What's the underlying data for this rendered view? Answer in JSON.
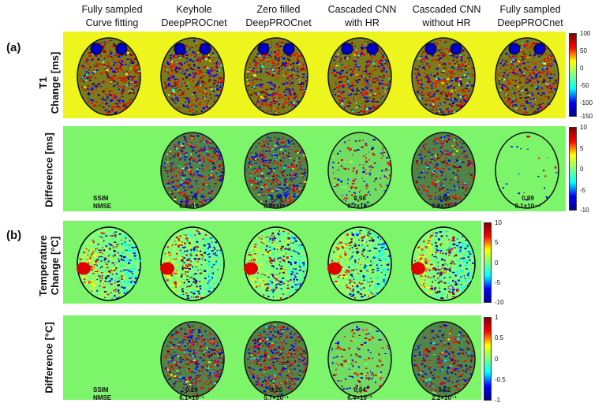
{
  "columns": [
    [
      "Fully sampled",
      "Curve fitting"
    ],
    [
      "Keyhole",
      "DeepPROCnet"
    ],
    [
      "Zero filled",
      "DeepPROCnet"
    ],
    [
      "Cascaded CNN",
      "with HR"
    ],
    [
      "Cascaded CNN",
      "without HR"
    ],
    [
      "Fully sampled",
      "DeepPROCnet"
    ]
  ],
  "panel_a_label": "(a)",
  "panel_b_label": "(b)",
  "row_labels": {
    "t1_change": [
      "T1",
      "Change  [ms]"
    ],
    "t1_diff": [
      "Difference [ms]"
    ],
    "temp_change": [
      "Temperature",
      "Change [°C]"
    ],
    "temp_diff": [
      "Difference [°C]"
    ]
  },
  "metric_labels": {
    "ssim": "SSIM",
    "nmse": "NMSE"
  },
  "metrics_a": {
    "ssim": [
      "0.79",
      "0.79",
      "0.98",
      "0.96",
      "0.99"
    ],
    "nmse": [
      "0.8×10⁻²",
      "0.8×10⁻²",
      "0.2×10⁻³",
      "0.8×10⁻³",
      "0.1×10⁻⁴"
    ]
  },
  "metrics_b": {
    "ssim": [
      "0.20",
      "0.26",
      "0.84",
      "0.52"
    ],
    "nmse": [
      "6.1×10⁻¹",
      "5.7×10⁻¹",
      "6.4×10⁻²",
      "2.2×10⁻¹"
    ]
  },
  "colorbars": {
    "t1_change": [
      "100",
      "50",
      "0",
      "-50",
      "-100",
      "-150"
    ],
    "t1_diff": [
      "10",
      "5",
      "0",
      "-5",
      "-10"
    ],
    "temp_change": [
      "10",
      "5",
      "0",
      "-5",
      "-10"
    ],
    "temp_diff": [
      "1",
      "0.5",
      "0",
      "-0.5",
      "-1"
    ]
  },
  "colors": {
    "yellow_bg": "#eef51c",
    "green_bg": "#7cf56a",
    "jet": [
      "#00008f",
      "#0000ff",
      "#00ffff",
      "#7fff7f",
      "#ffff00",
      "#ff0000",
      "#800000"
    ]
  }
}
